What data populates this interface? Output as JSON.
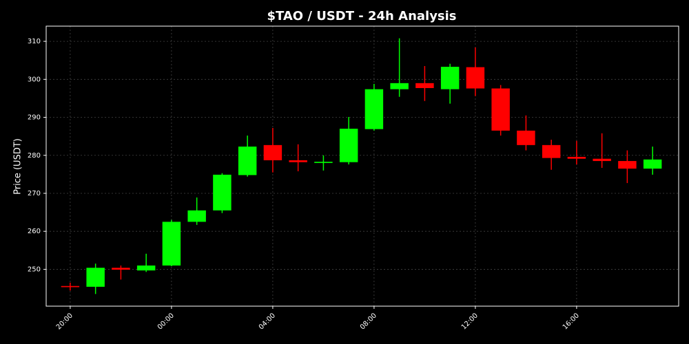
{
  "chart_data": {
    "type": "candlestick",
    "title": "$TAO / USDT - 24h Analysis",
    "y_label": "Price (USDT)",
    "categories": [
      "20:00",
      null,
      null,
      null,
      "00:00",
      null,
      null,
      null,
      "04:00",
      null,
      null,
      null,
      "08:00",
      null,
      null,
      null,
      "12:00",
      null,
      null,
      null,
      "16:00",
      null,
      null,
      null
    ],
    "open": [
      245.6,
      245.4,
      250.4,
      249.7,
      251.0,
      262.5,
      265.5,
      274.8,
      282.7,
      278.7,
      278.0,
      278.2,
      286.9,
      297.4,
      299.0,
      297.4,
      303.2,
      297.6,
      286.5,
      282.7,
      279.6,
      279.1,
      278.5,
      276.5
    ],
    "high": [
      246.5,
      251.5,
      251.0,
      254.1,
      263.0,
      268.9,
      275.3,
      285.2,
      287.2,
      282.9,
      280.0,
      290.1,
      298.8,
      310.8,
      303.5,
      304.1,
      308.4,
      298.5,
      290.5,
      284.1,
      283.8,
      285.8,
      281.3,
      282.3
    ],
    "low": [
      244.4,
      243.5,
      247.3,
      249.3,
      250.8,
      261.7,
      264.8,
      274.4,
      275.5,
      275.8,
      276.0,
      277.6,
      286.5,
      295.4,
      294.3,
      293.6,
      295.6,
      285.2,
      281.3,
      276.2,
      277.6,
      276.7,
      272.7,
      274.9
    ],
    "close": [
      245.3,
      250.4,
      249.9,
      251.0,
      262.5,
      265.5,
      274.9,
      282.3,
      278.7,
      278.2,
      278.3,
      287.0,
      297.4,
      299.0,
      297.7,
      303.3,
      297.6,
      286.5,
      282.7,
      279.3,
      279.1,
      278.5,
      276.5,
      278.9
    ],
    "up_color": "#00ff00",
    "down_color": "#ff0000",
    "ylim": [
      240.3,
      314.0
    ],
    "yticks": [
      250,
      260,
      270,
      280,
      290,
      300,
      310
    ],
    "grid": true
  }
}
